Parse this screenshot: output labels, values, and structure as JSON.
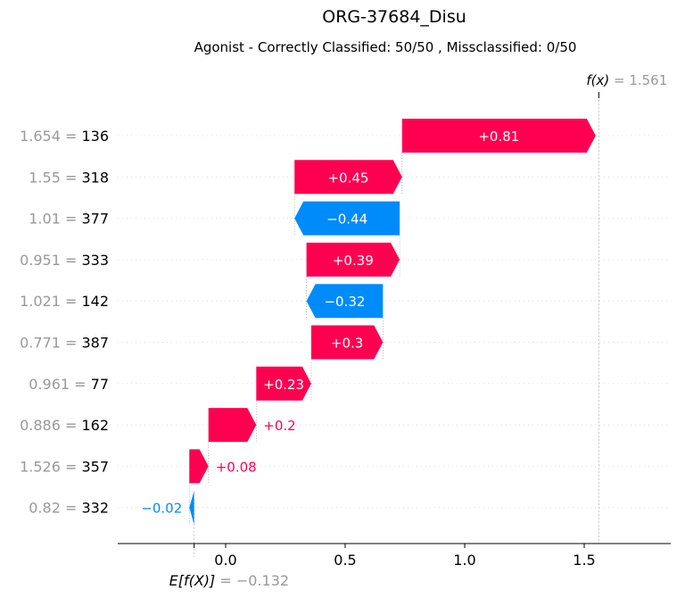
{
  "chart_data": {
    "type": "waterfall",
    "title": "ORG-37684_Disu",
    "subtitle": "Agonist - Correctly Classified: 50/50 , Missclassified: 0/50",
    "base_value": -0.132,
    "base_value_label": "E[f(X)]",
    "base_value_text": "= −0.132",
    "output_value": 1.561,
    "output_value_label": "f(x)",
    "output_value_text": "= 1.561",
    "xlim": [
      -0.45,
      1.87
    ],
    "xticks": [
      0.0,
      0.5,
      1.0,
      1.5
    ],
    "xtick_labels": [
      "0.0",
      "0.5",
      "1.0",
      "1.5"
    ],
    "features": [
      {
        "value": "1.654 =",
        "name": "136",
        "shap": 0.81,
        "label": "+0.81"
      },
      {
        "value": "1.55 =",
        "name": "318",
        "shap": 0.45,
        "label": "+0.45"
      },
      {
        "value": "1.01 =",
        "name": "377",
        "shap": -0.44,
        "label": "−0.44"
      },
      {
        "value": "0.951 =",
        "name": "333",
        "shap": 0.39,
        "label": "+0.39"
      },
      {
        "value": "1.021 =",
        "name": "142",
        "shap": -0.32,
        "label": "−0.32"
      },
      {
        "value": "0.771 =",
        "name": "387",
        "shap": 0.3,
        "label": "+0.3"
      },
      {
        "value": "0.961 =",
        "name": "77",
        "shap": 0.23,
        "label": "+0.23"
      },
      {
        "value": "0.886 =",
        "name": "162",
        "shap": 0.2,
        "label": "+0.2"
      },
      {
        "value": "1.526 =",
        "name": "357",
        "shap": 0.08,
        "label": "+0.08"
      },
      {
        "value": "0.82 =",
        "name": "332",
        "shap": -0.02,
        "label": "−0.02"
      }
    ],
    "colors": {
      "positive": "#ff0051",
      "negative": "#008bfb",
      "muted": "#999999"
    }
  }
}
